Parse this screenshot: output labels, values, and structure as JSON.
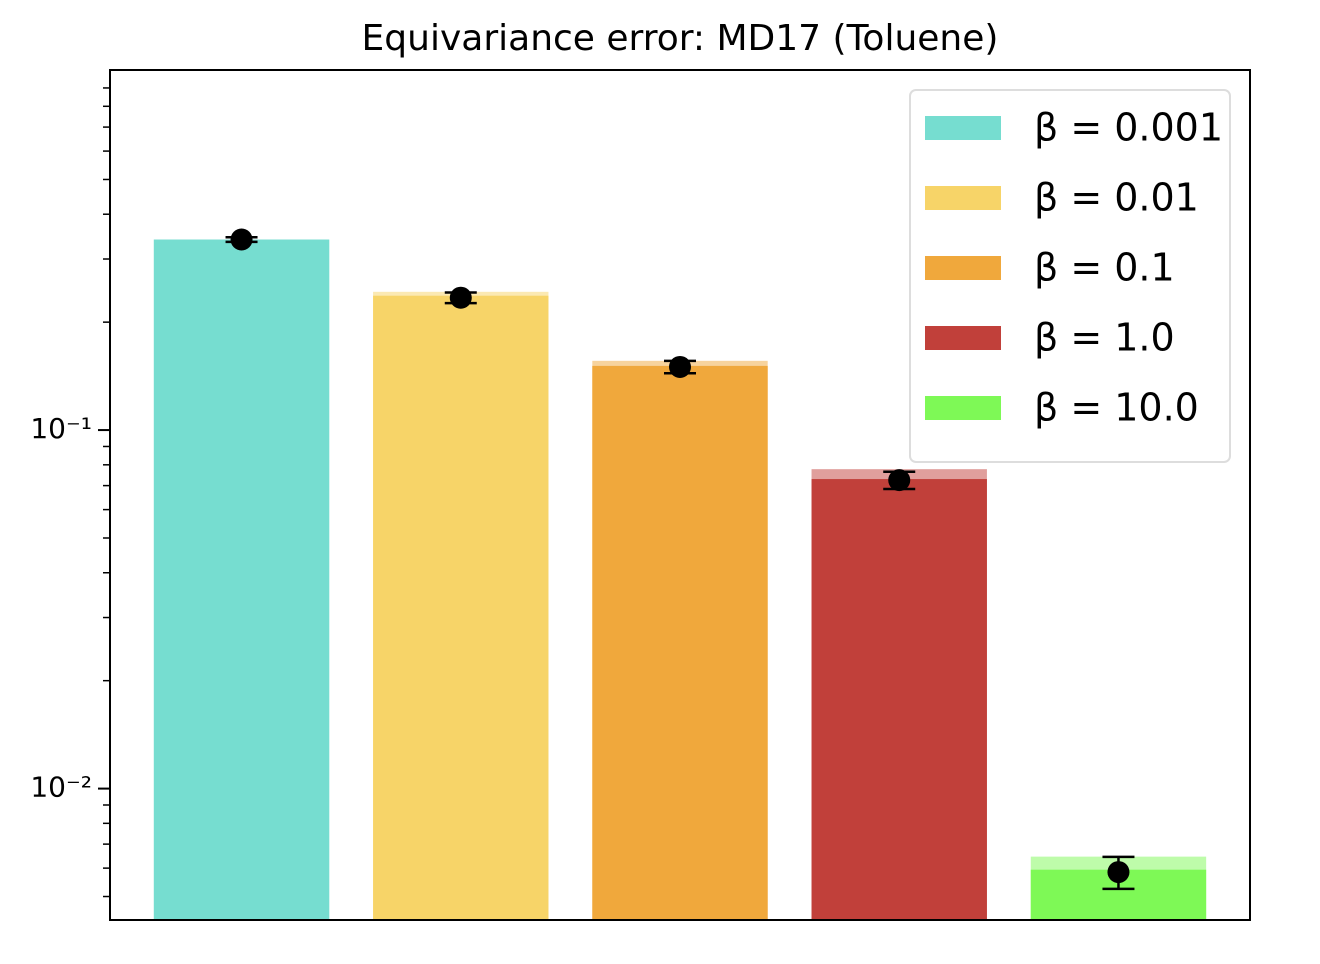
{
  "chart_data": {
    "type": "bar",
    "title": "Equivariance error: MD17 (Toluene)",
    "log_scale": true,
    "ylim": [
      0.0043,
      1.01
    ],
    "yticks": [
      {
        "value": 0.01,
        "label": "10⁻²"
      },
      {
        "value": 0.1,
        "label": "10⁻¹"
      }
    ],
    "yminor": [
      0.005,
      0.006,
      0.007,
      0.008,
      0.009,
      0.02,
      0.03,
      0.04,
      0.05,
      0.06,
      0.07,
      0.08,
      0.09,
      0.2,
      0.3,
      0.4,
      0.5,
      0.6,
      0.7,
      0.8,
      0.9
    ],
    "legend": "upper right",
    "series": [
      {
        "name": "β = 0.001",
        "color": "#76ddd0",
        "values": [
          0.34
        ],
        "upper_values": [
          0.34
        ],
        "points": [
          0.34
        ],
        "errors": [
          0.005
        ]
      },
      {
        "name": "β = 0.01",
        "color": "#f7d468",
        "values": [
          0.237
        ],
        "upper_values": [
          0.243
        ],
        "points": [
          0.234
        ],
        "errors": [
          0.008
        ]
      },
      {
        "name": "β = 0.1",
        "color": "#f0a83c",
        "values": [
          0.151
        ],
        "upper_values": [
          0.156
        ],
        "points": [
          0.15
        ],
        "errors": [
          0.006
        ]
      },
      {
        "name": "β = 1.0",
        "color": "#c1403a",
        "values": [
          0.073
        ],
        "upper_values": [
          0.0778
        ],
        "points": [
          0.0725
        ],
        "errors": [
          0.004
        ]
      },
      {
        "name": "β = 10.0",
        "color": "#7ef956",
        "values": [
          0.00594
        ],
        "upper_values": [
          0.00646
        ],
        "points": [
          0.00585
        ],
        "errors": [
          0.0006
        ]
      }
    ]
  }
}
